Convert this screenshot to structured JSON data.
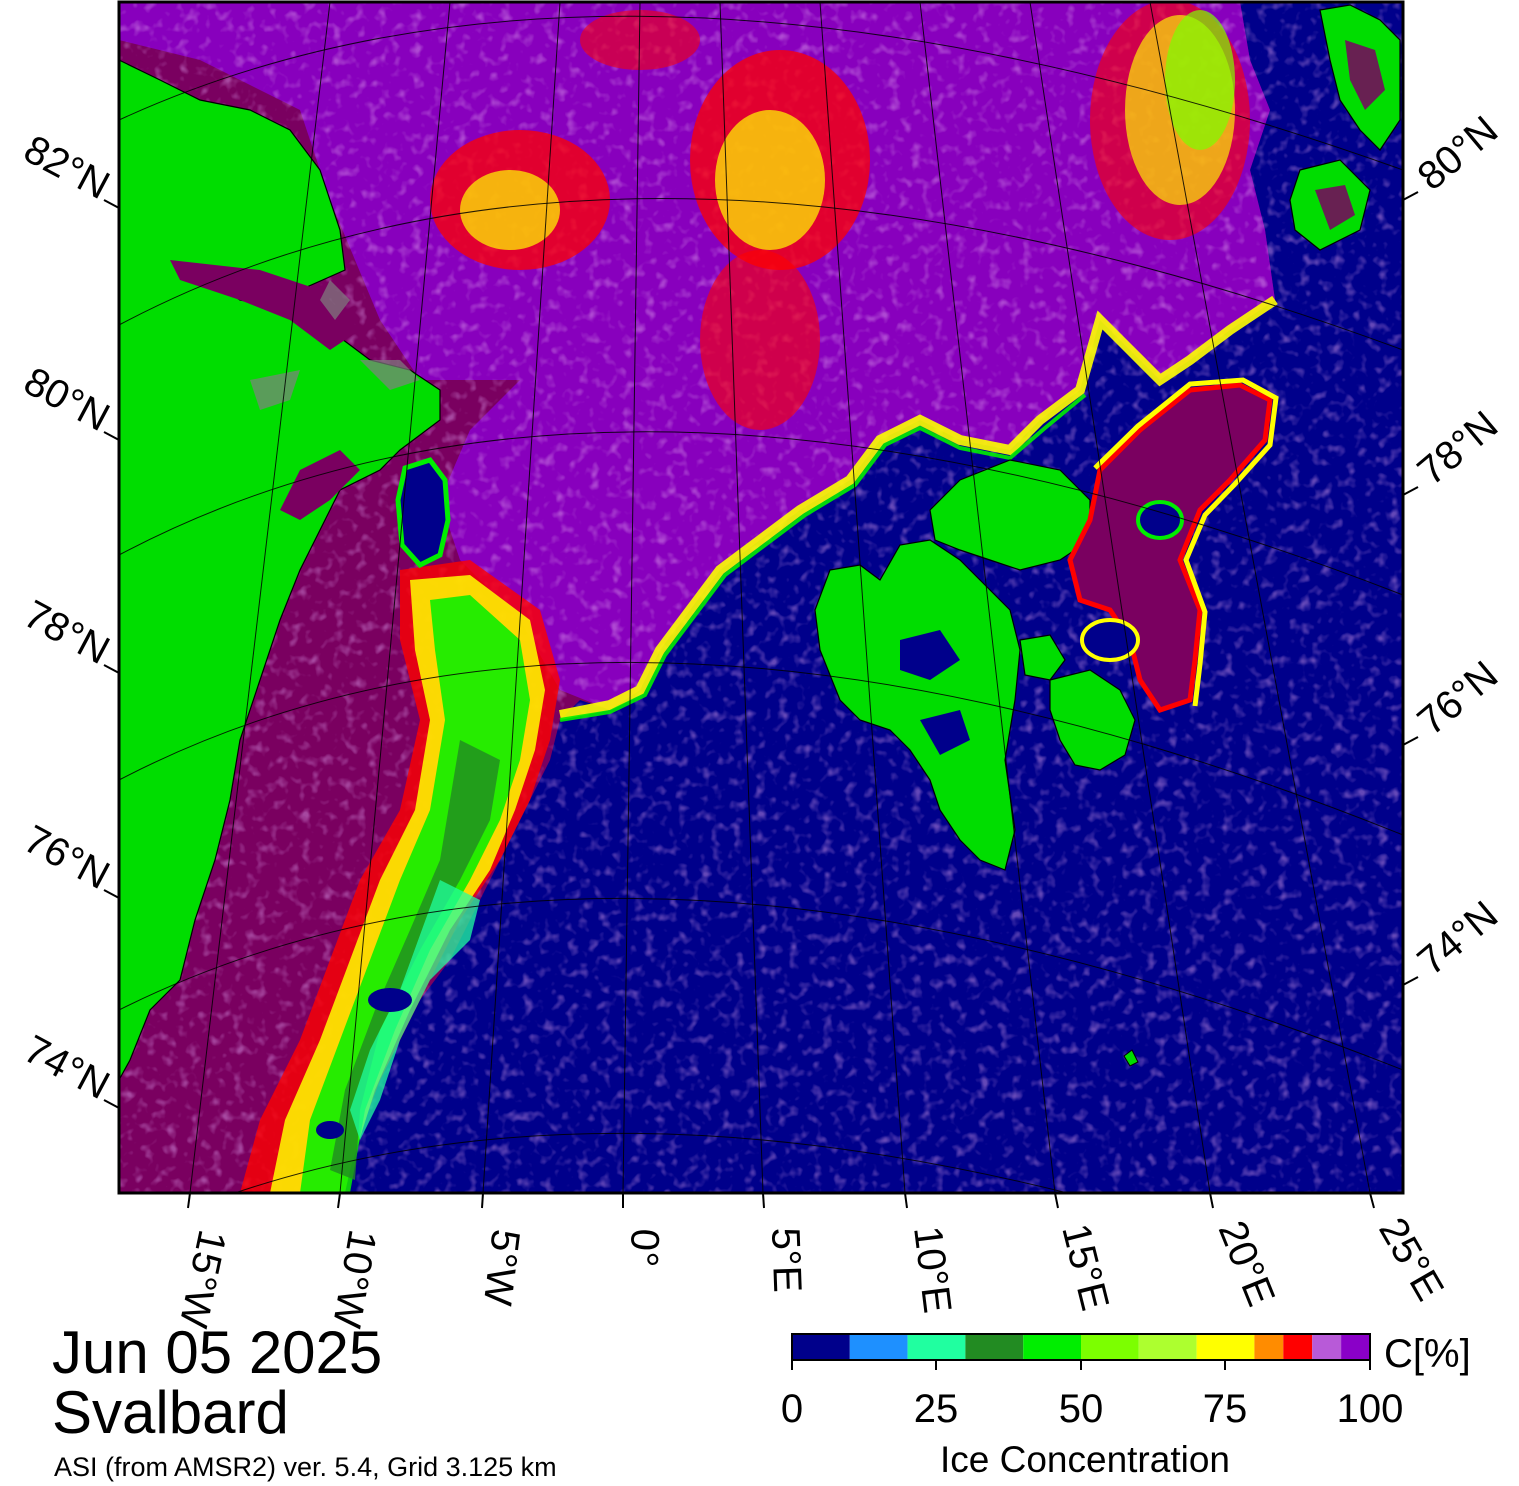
{
  "map": {
    "date": "Jun 05 2025",
    "region": "Svalbard",
    "source": "ASI (from AMSR2) ver. 5.4,  Grid 3.125 km",
    "colors": {
      "open_water": "#00008b",
      "land": "#00dd00",
      "land_border": "#808080",
      "ice_high": "#7a0060",
      "ice_purple": "#8a00c8",
      "ice_lilac": "#b85ad8",
      "ice_red": "#ff0000",
      "ice_yellow": "#ffff00",
      "ice_lime": "#a0ff30",
      "ice_green": "#228b22",
      "ice_teal": "#20ffa0"
    },
    "lat_labels_left": [
      "82°N",
      "80°N",
      "78°N",
      "76°N",
      "74°N"
    ],
    "lat_labels_right": [
      "80°N",
      "78°N",
      "76°N",
      "74°N"
    ],
    "lon_labels": [
      "15°W",
      "10°W",
      "5°W",
      "0°",
      "5°E",
      "10°E",
      "15°E",
      "20°E",
      "25°E"
    ]
  },
  "colorbar": {
    "unit_label": "C[%]",
    "title": "Ice Concentration",
    "ticks": [
      "0",
      "25",
      "50",
      "75",
      "100"
    ],
    "colors": [
      "#00008b",
      "#1e90ff",
      "#20ffa0",
      "#228b22",
      "#00ee00",
      "#7cff00",
      "#adff2f",
      "#ffff00",
      "#ff8c00",
      "#ff0000",
      "#b85ad8",
      "#8a00c8",
      "#7a0060"
    ],
    "steps": [
      0,
      10,
      20,
      30,
      40,
      50,
      60,
      70,
      80,
      85,
      90,
      95,
      100
    ]
  }
}
